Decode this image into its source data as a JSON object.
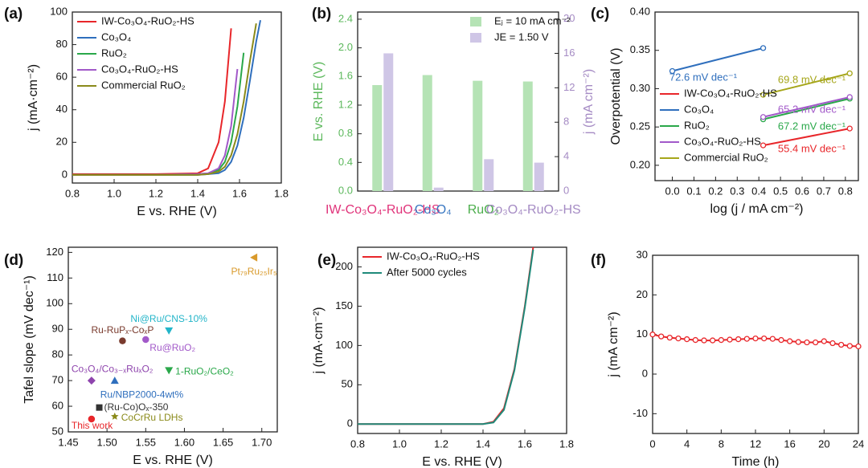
{
  "chart_data": [
    {
      "type": "line",
      "panel_label": "(a)",
      "xlabel": "E vs. RHE (V)",
      "ylabel": "j (mA·cm⁻²)",
      "xlim": [
        0.8,
        1.8
      ],
      "xticks": [
        0.8,
        {
          "value": 1,
          "label": "1.0"
        },
        1.2,
        1.4,
        1.6,
        1.8
      ],
      "ylim": [
        -5,
        100
      ],
      "yticks": [
        0,
        20,
        40,
        60,
        80,
        100
      ],
      "legend": "upper left",
      "x": [
        0.8,
        1.0,
        1.2,
        1.4,
        1.45,
        1.5,
        1.53,
        1.56,
        1.59,
        1.62,
        1.65,
        1.68,
        1.7
      ],
      "series": [
        {
          "name": "IW-Co₃O₄-RuO₂-HS",
          "color": "#e8262a",
          "values": [
            0.5,
            0.5,
            0.5,
            1,
            4,
            20,
            45,
            90,
            null,
            null,
            null,
            null,
            null
          ]
        },
        {
          "name": "Co₃O₄",
          "color": "#2f6fbd",
          "values": [
            0,
            0,
            0,
            0,
            0.5,
            1,
            3,
            8,
            18,
            35,
            58,
            82,
            95
          ]
        },
        {
          "name": "RuO₂",
          "color": "#2aa84a",
          "values": [
            0,
            0,
            0,
            0.5,
            1,
            3,
            8,
            20,
            42,
            75,
            null,
            null,
            null
          ]
        },
        {
          "name": "Co₃O₄-RuO₂-HS",
          "color": "#a259c9",
          "values": [
            0,
            0,
            0,
            0.5,
            1,
            4,
            12,
            30,
            65,
            null,
            null,
            null,
            null
          ]
        },
        {
          "name": "Commercial RuO₂",
          "color": "#8a8a1a",
          "values": [
            0,
            0,
            0,
            0,
            0.5,
            2,
            5,
            12,
            25,
            45,
            70,
            93,
            null
          ]
        }
      ]
    },
    {
      "type": "bar",
      "panel_label": "(b)",
      "ylabel": "E vs. RHE (V)",
      "y2label": "j (mA cm⁻²)",
      "ylabel_color": "#5cb85c",
      "y2label_color": "#a58bc4",
      "legend": "upper right",
      "categories": [
        "IW-Co₃O₄-RuO₂-HS",
        "Co₃O₄",
        "RuO₂",
        "Co₃O₄-RuO₂-HS"
      ],
      "category_colors": [
        "#e0337a",
        "#3a78c2",
        "#4cae4c",
        "#a58bc4"
      ],
      "ylim": [
        0,
        2.5
      ],
      "yticks": [
        {
          "value": 0,
          "label": "0.0"
        },
        0.4,
        0.8,
        1.2,
        1.6,
        {
          "value": 2,
          "label": "2.0"
        },
        2.4
      ],
      "y2lim": [
        0,
        20.8
      ],
      "y2ticks": [
        0,
        4,
        8,
        12,
        16,
        20
      ],
      "series": [
        {
          "name": "Eⱼ = 10 mA cm⁻²",
          "color": "#b5e3b5",
          "values": [
            1.48,
            1.62,
            1.54,
            1.53
          ]
        },
        {
          "name": "JE = 1.50 V",
          "color": "#cfc6e6",
          "axis": "y2",
          "values": [
            16,
            0.4,
            3.7,
            3.3
          ]
        }
      ]
    },
    {
      "type": "line",
      "panel_label": "(c)",
      "markers": true,
      "xlabel": "log (j / mA cm⁻²)",
      "ylabel": "Overpotential  (V)",
      "xlim": [
        -0.08,
        0.86
      ],
      "xticks": [
        {
          "value": 0,
          "label": "0.0"
        },
        0.1,
        0.2,
        0.3,
        0.4,
        0.5,
        0.6,
        0.7,
        0.8
      ],
      "ylim": [
        0.18,
        0.4
      ],
      "yticks": [
        {
          "value": 0.2,
          "label": "0.20"
        },
        0.25,
        {
          "value": 0.3,
          "label": "0.30"
        },
        0.35,
        {
          "value": 0.4,
          "label": "0.40"
        }
      ],
      "legend": "lower left",
      "x": [
        0,
        0.42,
        0.82
      ],
      "series": [
        {
          "name": "IW-Co₃O₄-RuO₂-HS",
          "color": "#e8262a",
          "values": [
            null,
            0.226,
            0.248
          ]
        },
        {
          "name": "Co₃O₄",
          "color": "#2f6fbd",
          "values": [
            0.323,
            0.353,
            null
          ]
        },
        {
          "name": "RuO₂",
          "color": "#2aa84a",
          "values": [
            null,
            0.26,
            0.287
          ]
        },
        {
          "name": "Co₃O₄-RuO₂-HS",
          "color": "#a259c9",
          "values": [
            null,
            0.263,
            0.289
          ]
        },
        {
          "name": "Commercial RuO₂",
          "color": "#a6a61a",
          "values": [
            null,
            0.292,
            0.32
          ]
        }
      ],
      "annotations": [
        {
          "text": "72.6 mV dec⁻¹",
          "color": "#2f6fbd"
        },
        {
          "text": "69.8 mV dec⁻¹",
          "color": "#a6a61a"
        },
        {
          "text": "65.2 mV dec⁻¹",
          "color": "#a259c9"
        },
        {
          "text": "67.2 mV dec⁻¹",
          "color": "#2aa84a"
        },
        {
          "text": "55.4 mV dec⁻¹",
          "color": "#e8262a"
        }
      ]
    },
    {
      "type": "scatter",
      "panel_label": "(d)",
      "xlabel": "E vs. RHE (V)",
      "ylabel": "Tafel slope (mV dec⁻¹)",
      "xlim": [
        1.45,
        1.72
      ],
      "xticks": [
        1.45,
        {
          "value": 1.5,
          "label": "1.50"
        },
        1.55,
        {
          "value": 1.6,
          "label": "1.60"
        },
        1.65,
        {
          "value": 1.7,
          "label": "1.70"
        }
      ],
      "ylim": [
        50,
        122
      ],
      "yticks": [
        50,
        60,
        70,
        80,
        90,
        100,
        110,
        120
      ],
      "series": [
        {
          "name": "This work",
          "color": "#e8262a",
          "marker": "circle",
          "x": [
            1.48
          ],
          "values": [
            55
          ]
        },
        {
          "name": "(Ru-Co)Oₓ-350",
          "color": "#333333",
          "marker": "square",
          "x": [
            1.49
          ],
          "values": [
            59.5
          ]
        },
        {
          "name": "CoCrRu LDHs",
          "color": "#8a8a1a",
          "marker": "star",
          "x": [
            1.51
          ],
          "values": [
            56
          ]
        },
        {
          "name": "Ru/NBP2000-4wt%",
          "color": "#2f6fbd",
          "marker": "triangle",
          "x": [
            1.51
          ],
          "values": [
            70
          ]
        },
        {
          "name": "Co₃O₄/Co₃₋ₓRuₓO₂",
          "color": "#8e44ad",
          "marker": "diamond",
          "x": [
            1.48
          ],
          "values": [
            70
          ]
        },
        {
          "name": "Ru-RuPₓ-CoₓP",
          "color": "#7a3b2e",
          "marker": "circle",
          "x": [
            1.52
          ],
          "values": [
            85.5
          ]
        },
        {
          "name": "Ru@RuO₂",
          "color": "#a259c9",
          "marker": "circle",
          "x": [
            1.55
          ],
          "values": [
            86
          ]
        },
        {
          "name": "Ni@Ru/CNS-10%",
          "color": "#23b5c9",
          "marker": "triangle-down",
          "x": [
            1.58
          ],
          "values": [
            89.5
          ]
        },
        {
          "name": "1-RuO₂/CeO₂",
          "color": "#2aa84a",
          "marker": "triangle-down",
          "x": [
            1.58
          ],
          "values": [
            74
          ]
        },
        {
          "name": "Pt₇₉Ru₂₅Ir₅",
          "color": "#d99a2b",
          "marker": "triangle-left",
          "x": [
            1.69
          ],
          "values": [
            118
          ]
        }
      ]
    },
    {
      "type": "line",
      "panel_label": "(e)",
      "xlabel": "E vs. RHE (V)",
      "ylabel": "j (mA·cm⁻²)",
      "xlim": [
        0.8,
        1.8
      ],
      "xticks": [
        0.8,
        {
          "value": 1,
          "label": "1.0"
        },
        1.2,
        1.4,
        1.6,
        1.8
      ],
      "ylim": [
        -12,
        225
      ],
      "yticks": [
        0,
        50,
        100,
        150,
        200
      ],
      "legend": "upper left",
      "x": [
        0.8,
        1.0,
        1.2,
        1.4,
        1.45,
        1.5,
        1.55,
        1.6,
        1.64
      ],
      "series": [
        {
          "name": "IW-Co₃O₄-RuO₂-HS",
          "color": "#e8262a",
          "values": [
            0,
            0,
            0,
            0,
            3,
            20,
            70,
            150,
            225
          ]
        },
        {
          "name": "After 5000 cycles",
          "color": "#1f8a7a",
          "values": [
            0,
            0,
            0,
            0,
            2,
            18,
            68,
            148,
            222
          ]
        }
      ]
    },
    {
      "type": "line",
      "panel_label": "(f)",
      "markers": true,
      "xlabel": "Time (h)",
      "ylabel": "j (mA cm⁻²)",
      "xlim": [
        0,
        24
      ],
      "xticks": [
        0,
        4,
        8,
        12,
        16,
        20,
        24
      ],
      "ylim": [
        -15,
        30
      ],
      "yticks": [
        -10,
        0,
        10,
        20,
        30
      ],
      "x": [
        0,
        1,
        2,
        3,
        4,
        5,
        6,
        7,
        8,
        9,
        10,
        11,
        12,
        13,
        14,
        15,
        16,
        17,
        18,
        19,
        20,
        21,
        22,
        23,
        24
      ],
      "series": [
        {
          "color": "#e8262a",
          "values": [
            10,
            9.5,
            9.2,
            9,
            8.8,
            8.6,
            8.5,
            8.5,
            8.6,
            8.7,
            8.8,
            8.9,
            9,
            9,
            8.9,
            8.6,
            8.3,
            8.1,
            8,
            8,
            8.3,
            7.8,
            7.4,
            7.1,
            7
          ]
        }
      ]
    }
  ]
}
